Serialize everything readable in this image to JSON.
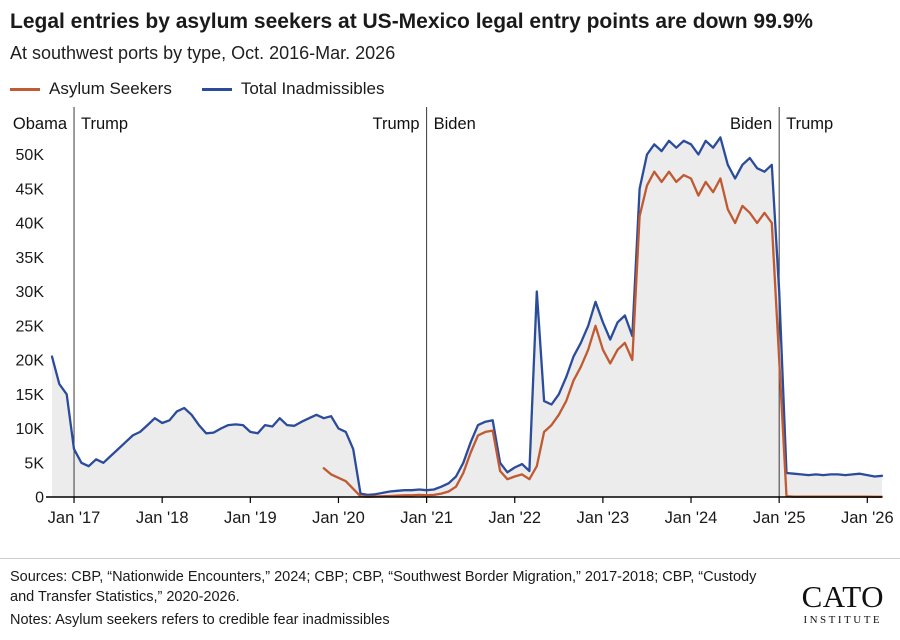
{
  "chart_data": {
    "type": "line",
    "title": "Legal entries by asylum seekers at US-Mexico legal entry points are down 99.9%",
    "subtitle": "At southwest ports by type, Oct. 2016-Mar. 2026",
    "x_range": {
      "start": "Oct 2016",
      "end": "Mar 2026",
      "frequency": "monthly"
    },
    "ylim": [
      0,
      53000
    ],
    "grid": false,
    "legend_position": "top-left",
    "y_ticks": [
      {
        "value": 0,
        "label": "0"
      },
      {
        "value": 5000,
        "label": "5K"
      },
      {
        "value": 10000,
        "label": "10K"
      },
      {
        "value": 15000,
        "label": "15K"
      },
      {
        "value": 20000,
        "label": "20K"
      },
      {
        "value": 25000,
        "label": "25K"
      },
      {
        "value": 30000,
        "label": "30K"
      },
      {
        "value": 35000,
        "label": "35K"
      },
      {
        "value": 40000,
        "label": "40K"
      },
      {
        "value": 45000,
        "label": "45K"
      },
      {
        "value": 50000,
        "label": "50K"
      }
    ],
    "x_ticks": [
      {
        "index": 3,
        "label": "Jan '17"
      },
      {
        "index": 15,
        "label": "Jan '18"
      },
      {
        "index": 27,
        "label": "Jan '19"
      },
      {
        "index": 39,
        "label": "Jan '20"
      },
      {
        "index": 51,
        "label": "Jan '21"
      },
      {
        "index": 63,
        "label": "Jan '22"
      },
      {
        "index": 75,
        "label": "Jan '23"
      },
      {
        "index": 87,
        "label": "Jan '24"
      },
      {
        "index": 99,
        "label": "Jan '25"
      },
      {
        "index": 111,
        "label": "Jan '26"
      }
    ],
    "annotations": [
      {
        "index": 3,
        "month": "Jan 2017",
        "left_label": "Obama",
        "right_label": "Trump"
      },
      {
        "index": 51,
        "month": "Jan 2021",
        "left_label": "Trump",
        "right_label": "Biden"
      },
      {
        "index": 99,
        "month": "Jan 2025",
        "left_label": "Biden",
        "right_label": "Trump"
      }
    ],
    "series": [
      {
        "name": "Asylum Seekers",
        "color": "#c05a33",
        "values": [
          null,
          null,
          null,
          null,
          null,
          null,
          null,
          null,
          null,
          null,
          null,
          null,
          null,
          null,
          null,
          null,
          null,
          null,
          null,
          null,
          null,
          null,
          null,
          null,
          null,
          null,
          null,
          null,
          null,
          null,
          null,
          null,
          null,
          null,
          null,
          null,
          null,
          4200,
          3300,
          2800,
          2300,
          1200,
          100,
          50,
          80,
          100,
          150,
          200,
          250,
          250,
          300,
          250,
          300,
          500,
          800,
          1500,
          3500,
          6500,
          9000,
          9500,
          9700,
          3800,
          2600,
          3000,
          3300,
          2600,
          4500,
          9500,
          10500,
          12000,
          14000,
          17000,
          19000,
          21500,
          25000,
          21500,
          19500,
          21500,
          22500,
          20000,
          41000,
          45500,
          47500,
          46000,
          47500,
          46000,
          47000,
          46500,
          44000,
          46000,
          44500,
          46500,
          42000,
          40000,
          42500,
          41500,
          40000,
          41500,
          40000,
          20000,
          100,
          50,
          40,
          40,
          40,
          40,
          40,
          40,
          40,
          40,
          40,
          40,
          30,
          30
        ]
      },
      {
        "name": "Total Inadmissibles",
        "color": "#2b4c9b",
        "area_fill": "#ececec",
        "values": [
          20500,
          16500,
          15000,
          7000,
          5000,
          4500,
          5500,
          5000,
          6000,
          7000,
          8000,
          9000,
          9500,
          10500,
          11500,
          10800,
          11200,
          12500,
          13000,
          12000,
          10500,
          9300,
          9400,
          10000,
          10500,
          10600,
          10500,
          9500,
          9300,
          10500,
          10300,
          11500,
          10500,
          10400,
          11000,
          11500,
          12000,
          11500,
          11800,
          10000,
          9500,
          7000,
          500,
          300,
          400,
          600,
          800,
          900,
          1000,
          1000,
          1100,
          1000,
          1100,
          1500,
          2000,
          3000,
          5000,
          8000,
          10500,
          11000,
          11200,
          5000,
          3600,
          4300,
          4800,
          3800,
          30000,
          14000,
          13500,
          15000,
          17500,
          20500,
          22500,
          25000,
          28500,
          25500,
          23000,
          25500,
          26500,
          23500,
          45000,
          50000,
          51500,
          50500,
          52000,
          51000,
          52000,
          51500,
          50000,
          52000,
          51000,
          52500,
          48500,
          46500,
          48500,
          49500,
          48000,
          47500,
          48500,
          30000,
          3500,
          3400,
          3300,
          3200,
          3300,
          3200,
          3300,
          3300,
          3200,
          3300,
          3400,
          3200,
          3000,
          3100
        ]
      }
    ]
  },
  "footer": {
    "sources": "Sources: CBP, “Nationwide Encounters,” 2024; CBP; CBP, “Southwest Border Migration,” 2017-2018; CBP, “Custody and Transfer Statistics,” 2020-2026.",
    "notes": "Notes: Asylum seekers refers to credible fear inadmissibles",
    "logo_line1": "CATO",
    "logo_line2": "INSTITUTE"
  }
}
